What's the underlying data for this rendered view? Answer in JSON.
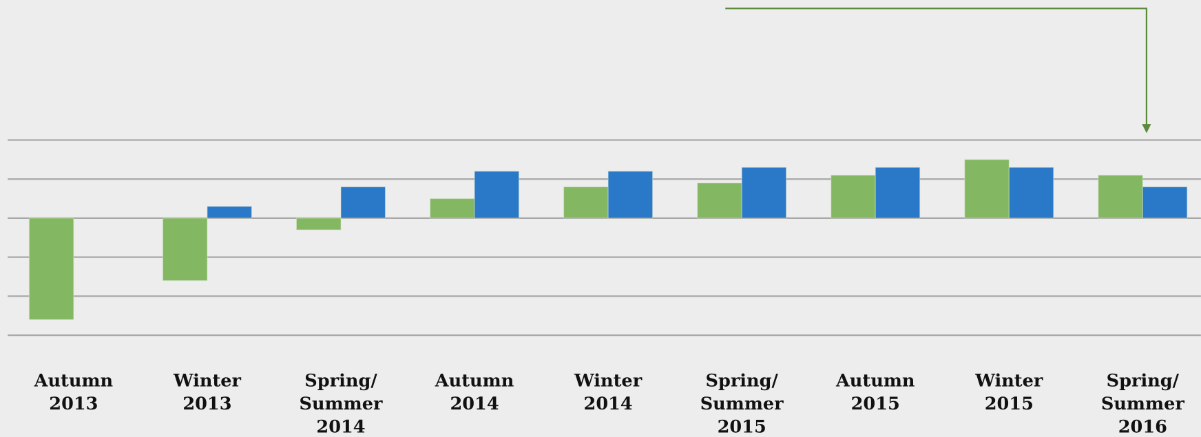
{
  "chart_data": {
    "type": "bar",
    "categories": [
      "Autumn\n2013",
      "Winter\n2013",
      "Spring/\nSummer\n2014",
      "Autumn\n2014",
      "Winter\n2014",
      "Spring/\nSummer\n2015",
      "Autumn\n2015",
      "Winter\n2015",
      "Spring/\nSummer\n2016"
    ],
    "series": [
      {
        "color": "#84b762",
        "values": [
          -2.6,
          -1.6,
          -0.3,
          0.5,
          0.8,
          0.9,
          1.1,
          1.5,
          1.1
        ]
      },
      {
        "color": "#2a78c8",
        "values": [
          null,
          0.3,
          0.8,
          1.2,
          1.2,
          1.3,
          1.3,
          1.3,
          0.8
        ]
      }
    ],
    "ylim": [
      -3,
      2
    ],
    "yticks": [
      -3,
      -2,
      -1,
      0,
      1,
      2
    ],
    "grid": true
  }
}
